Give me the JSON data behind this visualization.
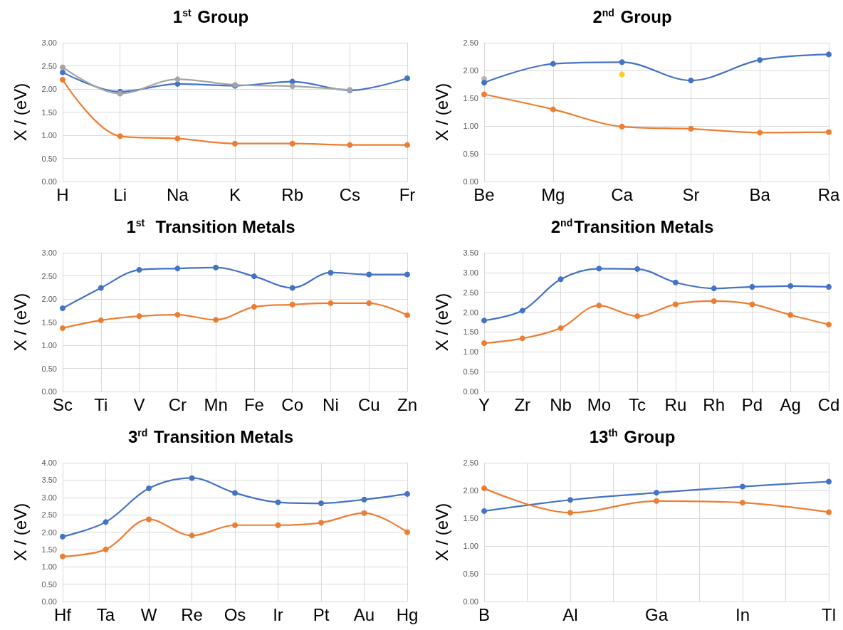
{
  "chart_data": [
    {
      "type": "line",
      "title": "1$^{st}$ Group",
      "ylabel": "X / (eV)",
      "categories": [
        "H",
        "Li",
        "Na",
        "K",
        "Rb",
        "Cs",
        "Fr"
      ],
      "ylim": [
        0,
        3
      ],
      "yticks": [
        {
          "value": 0,
          "label": "0.00"
        },
        {
          "value": 0.5,
          "label": "0.50"
        },
        {
          "value": 1,
          "label": "1.00"
        },
        {
          "value": 1.5,
          "label": "1.50"
        },
        {
          "value": 2,
          "label": "2.00"
        },
        {
          "value": 2.5,
          "label": "2.50"
        },
        {
          "value": 3,
          "label": "3.00"
        }
      ],
      "grid": true,
      "marker": "circle",
      "series": [
        {
          "color": "#4472c4",
          "values": [
            2.36,
            1.94,
            2.11,
            2.07,
            2.16,
            1.97,
            2.23
          ]
        },
        {
          "color": "#ed7d31",
          "values": [
            2.2,
            0.98,
            0.93,
            0.82,
            0.82,
            0.79,
            0.79
          ]
        },
        {
          "color": "#a5a5a5",
          "values": [
            2.47,
            1.9,
            2.21,
            2.09,
            2.06,
            1.98,
            null
          ]
        }
      ]
    },
    {
      "type": "line",
      "title": "2$^{nd}$ Group",
      "ylabel": "X / (eV)",
      "categories": [
        "Be",
        "Mg",
        "Ca",
        "Sr",
        "Ba",
        "Ra"
      ],
      "ylim": [
        0,
        2.5
      ],
      "yticks": [
        {
          "value": 0,
          "label": "0.00"
        },
        {
          "value": 0.5,
          "label": "0.50"
        },
        {
          "value": 1,
          "label": "1.00"
        },
        {
          "value": 1.5,
          "label": "1.50"
        },
        {
          "value": 2,
          "label": "2.00"
        },
        {
          "value": 2.5,
          "label": "2.50"
        }
      ],
      "grid": true,
      "marker": "circle",
      "series": [
        {
          "color": "#4472c4",
          "values": [
            1.78,
            2.12,
            2.15,
            1.82,
            2.19,
            2.29
          ]
        },
        {
          "color": "#ed7d31",
          "values": [
            1.57,
            1.3,
            0.99,
            0.95,
            0.88,
            0.89
          ]
        },
        {
          "type": "scatter",
          "color": "#a5a5a5",
          "values": [
            1.85,
            null,
            null,
            null,
            null,
            null
          ]
        },
        {
          "type": "scatter",
          "color": "#ffc000",
          "values": [
            null,
            null,
            1.93,
            null,
            null,
            null
          ]
        }
      ]
    },
    {
      "type": "line",
      "title": "1$^{st}$  Transition Metals",
      "ylabel": "X / (eV)",
      "categories": [
        "Sc",
        "Ti",
        "V",
        "Cr",
        "Mn",
        "Fe",
        "Co",
        "Ni",
        "Cu",
        "Zn"
      ],
      "ylim": [
        0,
        3
      ],
      "yticks": [
        {
          "value": 0,
          "label": "0.00"
        },
        {
          "value": 0.5,
          "label": "0.50"
        },
        {
          "value": 1,
          "label": "1.00"
        },
        {
          "value": 1.5,
          "label": "1.50"
        },
        {
          "value": 2,
          "label": "2.00"
        },
        {
          "value": 2.5,
          "label": "2.50"
        },
        {
          "value": 3,
          "label": "3.00"
        }
      ],
      "grid": true,
      "marker": "circle",
      "series": [
        {
          "color": "#4472c4",
          "values": [
            1.8,
            2.24,
            2.63,
            2.66,
            2.68,
            2.49,
            2.24,
            2.57,
            2.53,
            2.53
          ]
        },
        {
          "color": "#ed7d31",
          "values": [
            1.37,
            1.54,
            1.63,
            1.66,
            1.55,
            1.83,
            1.88,
            1.91,
            1.91,
            1.65
          ]
        }
      ]
    },
    {
      "type": "line",
      "title": "2$^{nd}$Transition Metals",
      "ylabel": "X / (eV)",
      "categories": [
        "Y",
        "Zr",
        "Nb",
        "Mo",
        "Tc",
        "Ru",
        "Rh",
        "Pd",
        "Ag",
        "Cd"
      ],
      "ylim": [
        0,
        3.5
      ],
      "yticks": [
        {
          "value": 0,
          "label": "0.00"
        },
        {
          "value": 0.5,
          "label": "0.50"
        },
        {
          "value": 1,
          "label": "1.00"
        },
        {
          "value": 1.5,
          "label": "1.50"
        },
        {
          "value": 2,
          "label": "2.00"
        },
        {
          "value": 2.5,
          "label": "2.50"
        },
        {
          "value": 3,
          "label": "3.00"
        },
        {
          "value": 3.5,
          "label": "3.50"
        }
      ],
      "grid": true,
      "marker": "circle",
      "series": [
        {
          "color": "#4472c4",
          "values": [
            1.79,
            2.04,
            2.83,
            3.1,
            3.09,
            2.75,
            2.6,
            2.64,
            2.66,
            2.64
          ]
        },
        {
          "color": "#ed7d31",
          "values": [
            1.22,
            1.34,
            1.6,
            2.17,
            1.9,
            2.2,
            2.28,
            2.2,
            1.93,
            1.69
          ]
        }
      ]
    },
    {
      "type": "line",
      "title": "3$^{rd}$ Transition Metals",
      "ylabel": "X / (eV)",
      "categories": [
        "Hf",
        "Ta",
        "W",
        "Re",
        "Os",
        "Ir",
        "Pt",
        "Au",
        "Hg"
      ],
      "ylim": [
        0,
        4
      ],
      "yticks": [
        {
          "value": 0,
          "label": "0.00"
        },
        {
          "value": 0.5,
          "label": "0.50"
        },
        {
          "value": 1,
          "label": "1.00"
        },
        {
          "value": 1.5,
          "label": "1.50"
        },
        {
          "value": 2,
          "label": "2.00"
        },
        {
          "value": 2.5,
          "label": "2.50"
        },
        {
          "value": 3,
          "label": "3.00"
        },
        {
          "value": 3.5,
          "label": "3.50"
        },
        {
          "value": 4,
          "label": "4.00"
        }
      ],
      "grid": true,
      "marker": "circle",
      "series": [
        {
          "color": "#4472c4",
          "values": [
            1.87,
            2.29,
            3.26,
            3.56,
            3.13,
            2.86,
            2.83,
            2.94,
            3.1
          ]
        },
        {
          "color": "#ed7d31",
          "values": [
            1.3,
            1.5,
            2.37,
            1.9,
            2.2,
            2.2,
            2.27,
            2.55,
            2.0
          ]
        }
      ]
    },
    {
      "type": "line",
      "title": "13$^{th}$ Group",
      "ylabel": "X / (eV)",
      "categories": [
        "B",
        null,
        "Al",
        null,
        "Ga",
        null,
        "In",
        null,
        "Tl"
      ],
      "ylim": [
        0,
        2.5
      ],
      "yticks": [
        {
          "value": 0,
          "label": "0.00"
        },
        {
          "value": 0.5,
          "label": "0.50"
        },
        {
          "value": 1,
          "label": "1.00"
        },
        {
          "value": 1.5,
          "label": "1.50"
        },
        {
          "value": 2,
          "label": "2.00"
        },
        {
          "value": 2.5,
          "label": "2.50"
        }
      ],
      "grid": true,
      "marker": "circle",
      "series": [
        {
          "color": "#4472c4",
          "values": [
            1.63,
            null,
            1.83,
            null,
            1.96,
            null,
            2.07,
            null,
            2.16
          ]
        },
        {
          "color": "#ed7d31",
          "values": [
            2.04,
            null,
            1.6,
            null,
            1.81,
            null,
            1.78,
            null,
            1.61
          ]
        }
      ]
    }
  ]
}
